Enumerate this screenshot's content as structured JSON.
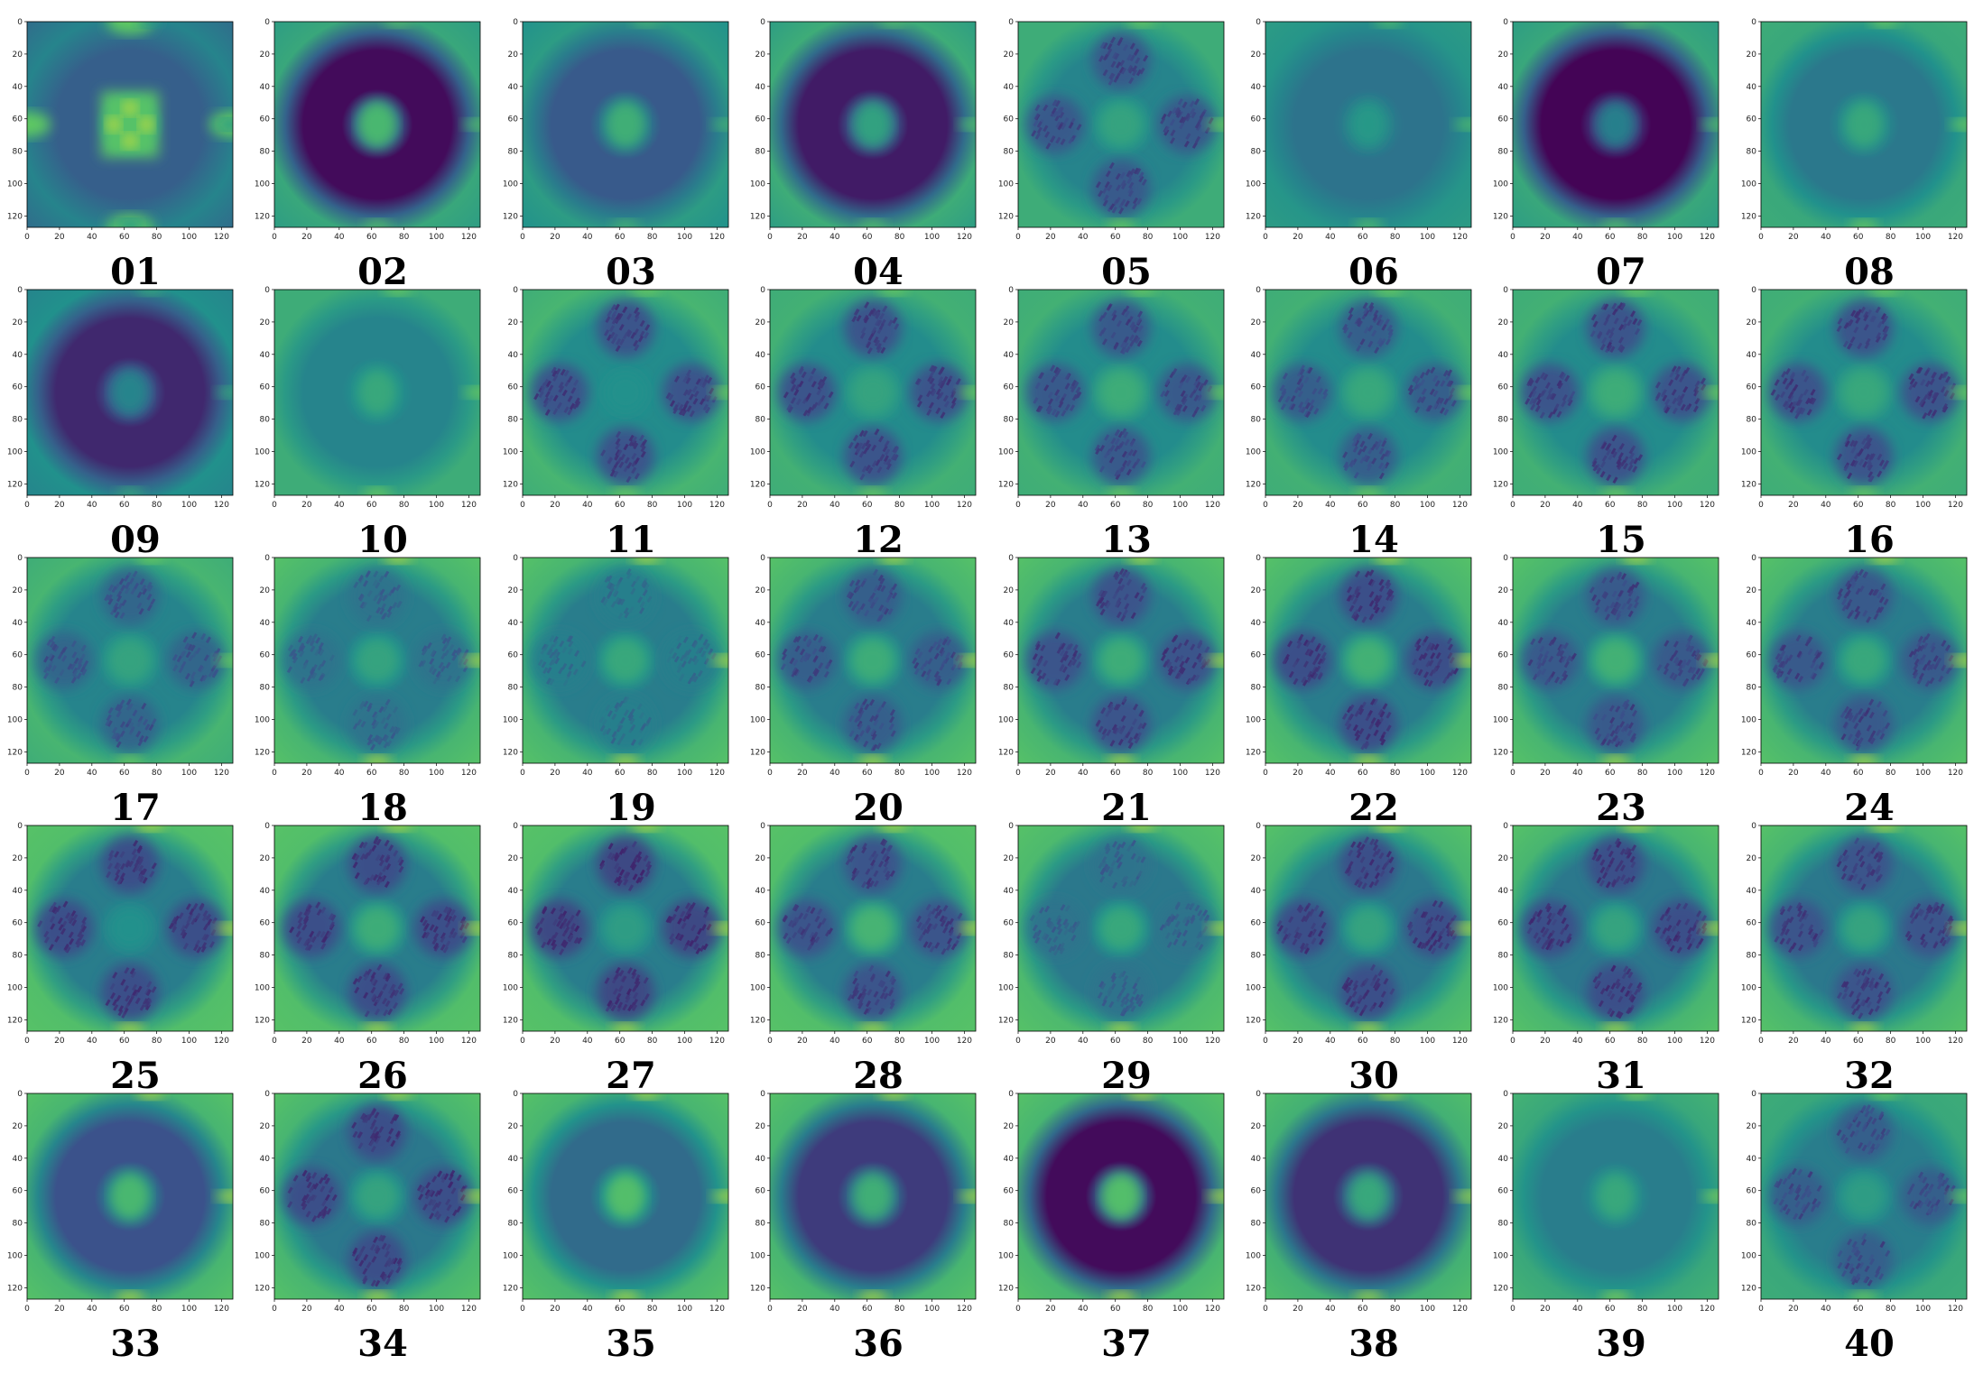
{
  "figure": {
    "colormap": [
      "#440154",
      "#3b528b",
      "#21918c",
      "#5ec962",
      "#fde725"
    ],
    "axes": {
      "x_ticks": [
        "0",
        "20",
        "40",
        "60",
        "80",
        "100",
        "120"
      ],
      "y_ticks": [
        "0",
        "20",
        "40",
        "60",
        "80",
        "100",
        "120"
      ],
      "xlim": [
        0,
        127
      ],
      "ylim": [
        127,
        0
      ]
    },
    "panels": [
      {
        "label": "01",
        "pattern": "cells",
        "bg": 0.3,
        "ring": 0.3,
        "center": 0.72,
        "arms": 0.3,
        "edge": 0.45,
        "corner": 0.35
      },
      {
        "label": "02",
        "pattern": "ring",
        "bg": 0.55,
        "ring": 0.03,
        "center": 0.62,
        "arms": 0.03,
        "edge": 0.6,
        "corner": 0.55
      },
      {
        "label": "03",
        "pattern": "ring",
        "bg": 0.45,
        "ring": 0.28,
        "center": 0.58,
        "arms": 0.28,
        "edge": 0.55,
        "corner": 0.5
      },
      {
        "label": "04",
        "pattern": "ring",
        "bg": 0.55,
        "ring": 0.08,
        "center": 0.52,
        "arms": 0.08,
        "edge": 0.62,
        "corner": 0.55
      },
      {
        "label": "05",
        "pattern": "cross",
        "bg": 0.52,
        "ring": 0.45,
        "center": 0.58,
        "arms": 0.2,
        "edge": 0.62,
        "corner": 0.62
      },
      {
        "label": "06",
        "pattern": "plain",
        "bg": 0.4,
        "ring": 0.38,
        "center": 0.48,
        "arms": 0.4,
        "edge": 0.52,
        "corner": 0.55
      },
      {
        "label": "07",
        "pattern": "ring",
        "bg": 0.5,
        "ring": 0.01,
        "center": 0.38,
        "arms": 0.01,
        "edge": 0.6,
        "corner": 0.55
      },
      {
        "label": "08",
        "pattern": "plain",
        "bg": 0.45,
        "ring": 0.4,
        "center": 0.55,
        "arms": 0.45,
        "edge": 0.6,
        "corner": 0.62
      },
      {
        "label": "09",
        "pattern": "ring",
        "bg": 0.45,
        "ring": 0.12,
        "center": 0.4,
        "arms": 0.12,
        "edge": 0.5,
        "corner": 0.45
      },
      {
        "label": "10",
        "pattern": "plain",
        "bg": 0.48,
        "ring": 0.45,
        "center": 0.55,
        "arms": 0.48,
        "edge": 0.62,
        "corner": 0.62
      },
      {
        "label": "11",
        "pattern": "cross",
        "bg": 0.55,
        "ring": 0.48,
        "center": 0.5,
        "arms": 0.18,
        "edge": 0.66,
        "corner": 0.62
      },
      {
        "label": "12",
        "pattern": "cross",
        "bg": 0.55,
        "ring": 0.48,
        "center": 0.58,
        "arms": 0.18,
        "edge": 0.64,
        "corner": 0.62
      },
      {
        "label": "13",
        "pattern": "cross",
        "bg": 0.55,
        "ring": 0.48,
        "center": 0.62,
        "arms": 0.2,
        "edge": 0.64,
        "corner": 0.62
      },
      {
        "label": "14",
        "pattern": "cross",
        "bg": 0.55,
        "ring": 0.48,
        "center": 0.6,
        "arms": 0.22,
        "edge": 0.64,
        "corner": 0.62
      },
      {
        "label": "15",
        "pattern": "cross",
        "bg": 0.55,
        "ring": 0.48,
        "center": 0.62,
        "arms": 0.18,
        "edge": 0.64,
        "corner": 0.62
      },
      {
        "label": "16",
        "pattern": "cross",
        "bg": 0.55,
        "ring": 0.48,
        "center": 0.6,
        "arms": 0.18,
        "edge": 0.64,
        "corner": 0.62
      },
      {
        "label": "17",
        "pattern": "cross",
        "bg": 0.55,
        "ring": 0.45,
        "center": 0.58,
        "arms": 0.25,
        "edge": 0.66,
        "corner": 0.62
      },
      {
        "label": "18",
        "pattern": "cross",
        "bg": 0.5,
        "ring": 0.42,
        "center": 0.58,
        "arms": 0.3,
        "edge": 0.66,
        "corner": 0.72
      },
      {
        "label": "19",
        "pattern": "cross",
        "bg": 0.5,
        "ring": 0.42,
        "center": 0.6,
        "arms": 0.35,
        "edge": 0.66,
        "corner": 0.72
      },
      {
        "label": "20",
        "pattern": "cross",
        "bg": 0.52,
        "ring": 0.42,
        "center": 0.62,
        "arms": 0.22,
        "edge": 0.66,
        "corner": 0.72
      },
      {
        "label": "21",
        "pattern": "cross",
        "bg": 0.52,
        "ring": 0.42,
        "center": 0.62,
        "arms": 0.18,
        "edge": 0.66,
        "corner": 0.72
      },
      {
        "label": "22",
        "pattern": "cross",
        "bg": 0.52,
        "ring": 0.42,
        "center": 0.64,
        "arms": 0.16,
        "edge": 0.66,
        "corner": 0.72
      },
      {
        "label": "23",
        "pattern": "cross",
        "bg": 0.52,
        "ring": 0.42,
        "center": 0.64,
        "arms": 0.2,
        "edge": 0.66,
        "corner": 0.72
      },
      {
        "label": "24",
        "pattern": "cross",
        "bg": 0.52,
        "ring": 0.42,
        "center": 0.6,
        "arms": 0.2,
        "edge": 0.66,
        "corner": 0.72
      },
      {
        "label": "25",
        "pattern": "cross",
        "bg": 0.55,
        "ring": 0.42,
        "center": 0.5,
        "arms": 0.16,
        "edge": 0.7,
        "corner": 0.72
      },
      {
        "label": "26",
        "pattern": "cross",
        "bg": 0.55,
        "ring": 0.42,
        "center": 0.62,
        "arms": 0.16,
        "edge": 0.7,
        "corner": 0.72
      },
      {
        "label": "27",
        "pattern": "cross",
        "bg": 0.55,
        "ring": 0.42,
        "center": 0.55,
        "arms": 0.14,
        "edge": 0.7,
        "corner": 0.72
      },
      {
        "label": "28",
        "pattern": "cross",
        "bg": 0.55,
        "ring": 0.42,
        "center": 0.65,
        "arms": 0.18,
        "edge": 0.7,
        "corner": 0.72
      },
      {
        "label": "29",
        "pattern": "cross",
        "bg": 0.52,
        "ring": 0.4,
        "center": 0.6,
        "arms": 0.3,
        "edge": 0.68,
        "corner": 0.72
      },
      {
        "label": "30",
        "pattern": "cross",
        "bg": 0.52,
        "ring": 0.4,
        "center": 0.58,
        "arms": 0.16,
        "edge": 0.66,
        "corner": 0.72
      },
      {
        "label": "31",
        "pattern": "cross",
        "bg": 0.52,
        "ring": 0.4,
        "center": 0.58,
        "arms": 0.16,
        "edge": 0.66,
        "corner": 0.72
      },
      {
        "label": "32",
        "pattern": "cross",
        "bg": 0.52,
        "ring": 0.4,
        "center": 0.58,
        "arms": 0.18,
        "edge": 0.66,
        "corner": 0.72
      },
      {
        "label": "33",
        "pattern": "ring",
        "bg": 0.52,
        "ring": 0.25,
        "center": 0.62,
        "arms": 0.25,
        "edge": 0.66,
        "corner": 0.72
      },
      {
        "label": "34",
        "pattern": "cross",
        "bg": 0.52,
        "ring": 0.4,
        "center": 0.58,
        "arms": 0.16,
        "edge": 0.66,
        "corner": 0.72
      },
      {
        "label": "35",
        "pattern": "ring",
        "bg": 0.52,
        "ring": 0.35,
        "center": 0.65,
        "arms": 0.35,
        "edge": 0.66,
        "corner": 0.72
      },
      {
        "label": "36",
        "pattern": "ring",
        "bg": 0.52,
        "ring": 0.18,
        "center": 0.58,
        "arms": 0.18,
        "edge": 0.66,
        "corner": 0.72
      },
      {
        "label": "37",
        "pattern": "ring",
        "bg": 0.5,
        "ring": 0.03,
        "center": 0.65,
        "arms": 0.03,
        "edge": 0.66,
        "corner": 0.72
      },
      {
        "label": "38",
        "pattern": "ring",
        "bg": 0.5,
        "ring": 0.15,
        "center": 0.55,
        "arms": 0.15,
        "edge": 0.64,
        "corner": 0.7
      },
      {
        "label": "39",
        "pattern": "plain",
        "bg": 0.45,
        "ring": 0.42,
        "center": 0.55,
        "arms": 0.42,
        "edge": 0.6,
        "corner": 0.65
      },
      {
        "label": "40",
        "pattern": "cross",
        "bg": 0.52,
        "ring": 0.42,
        "center": 0.55,
        "arms": 0.22,
        "edge": 0.6,
        "corner": 0.62
      }
    ]
  },
  "chart_data": [
    {
      "type": "heatmap",
      "label": "01"
    },
    {
      "type": "heatmap",
      "label": "02"
    },
    {
      "type": "heatmap",
      "label": "03"
    },
    {
      "type": "heatmap",
      "label": "04"
    },
    {
      "type": "heatmap",
      "label": "05"
    },
    {
      "type": "heatmap",
      "label": "06"
    },
    {
      "type": "heatmap",
      "label": "07"
    },
    {
      "type": "heatmap",
      "label": "08"
    },
    {
      "type": "heatmap",
      "label": "09"
    },
    {
      "type": "heatmap",
      "label": "10"
    },
    {
      "type": "heatmap",
      "label": "11"
    },
    {
      "type": "heatmap",
      "label": "12"
    },
    {
      "type": "heatmap",
      "label": "13"
    },
    {
      "type": "heatmap",
      "label": "14"
    },
    {
      "type": "heatmap",
      "label": "15"
    },
    {
      "type": "heatmap",
      "label": "16"
    },
    {
      "type": "heatmap",
      "label": "17"
    },
    {
      "type": "heatmap",
      "label": "18"
    },
    {
      "type": "heatmap",
      "label": "19"
    },
    {
      "type": "heatmap",
      "label": "20"
    },
    {
      "type": "heatmap",
      "label": "21"
    },
    {
      "type": "heatmap",
      "label": "22"
    },
    {
      "type": "heatmap",
      "label": "23"
    },
    {
      "type": "heatmap",
      "label": "24"
    },
    {
      "type": "heatmap",
      "label": "25"
    },
    {
      "type": "heatmap",
      "label": "26"
    },
    {
      "type": "heatmap",
      "label": "27"
    },
    {
      "type": "heatmap",
      "label": "28"
    },
    {
      "type": "heatmap",
      "label": "29"
    },
    {
      "type": "heatmap",
      "label": "30"
    },
    {
      "type": "heatmap",
      "label": "31"
    },
    {
      "type": "heatmap",
      "label": "32"
    },
    {
      "type": "heatmap",
      "label": "33"
    },
    {
      "type": "heatmap",
      "label": "34"
    },
    {
      "type": "heatmap",
      "label": "35"
    },
    {
      "type": "heatmap",
      "label": "36"
    },
    {
      "type": "heatmap",
      "label": "37"
    },
    {
      "type": "heatmap",
      "label": "38"
    },
    {
      "type": "heatmap",
      "label": "39"
    },
    {
      "type": "heatmap",
      "label": "40"
    }
  ]
}
